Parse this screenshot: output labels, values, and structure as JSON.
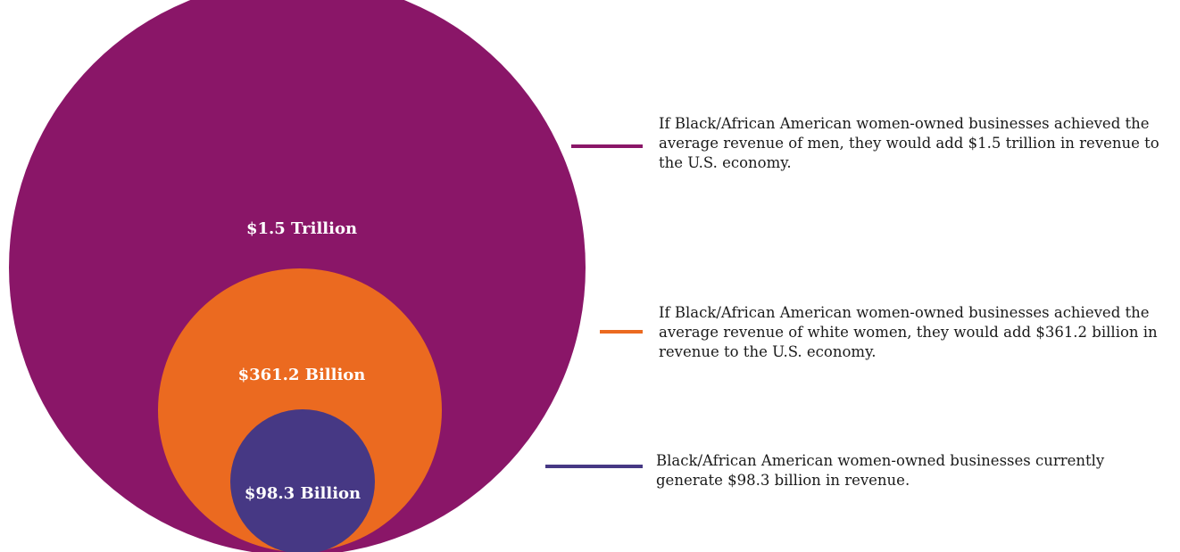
{
  "chart_data": {
    "type": "nested-bubble",
    "series": [
      {
        "label": "$1.5 Trillion",
        "value": 1500,
        "unit": "billion USD",
        "color": "#8a1668",
        "annotation": "If Black/African American women-owned businesses achieved the average revenue of men, they would add $1.5 trillion in revenue to the U.S. economy."
      },
      {
        "label": "$361.2 Billion",
        "value": 361.2,
        "unit": "billion USD",
        "color": "#eb6a20",
        "annotation": "If Black/African American women-owned businesses achieved the average revenue of white women, they would add $361.2 billion in revenue to the U.S. economy."
      },
      {
        "label": "$98.3 Billion",
        "value": 98.3,
        "unit": "billion USD",
        "color": "#463884",
        "annotation": "Black/African American women-owned businesses currently generate $98.3 billion in revenue."
      }
    ]
  }
}
